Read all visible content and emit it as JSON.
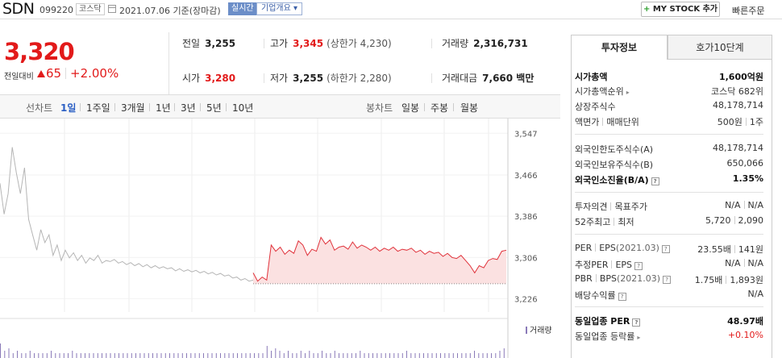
{
  "header": {
    "name": "SDN",
    "code": "099220",
    "market": "코스닥",
    "date": "2021.07.06 기준(장마감)",
    "live_label": "실시간",
    "corp_label": "기업개요",
    "mystock_plus": "+",
    "mystock_label": "MY STOCK 추가",
    "quick_label": "빠른주문"
  },
  "price": {
    "current": "3,320",
    "change_label": "전일대비",
    "change_icon": "up-triangle-icon",
    "change_value": "65",
    "change_pct": "+2.00%",
    "color_up": "#e21a1a"
  },
  "summary": {
    "prev_label": "전일",
    "prev": "3,255",
    "high_label": "고가",
    "high": "3,345",
    "upper_limit": "(상한가 4,230)",
    "volume_label": "거래량",
    "volume": "2,316,731",
    "open_label": "시가",
    "open": "3,280",
    "low_label": "저가",
    "low": "3,255",
    "lower_limit": "(하한가 2,280)",
    "amount_label": "거래대금",
    "amount": "7,660 백만"
  },
  "chart_tabs": {
    "line_label": "선차트",
    "periods": [
      "1일",
      "1주일",
      "3개월",
      "1년",
      "3년",
      "5년",
      "10년"
    ],
    "selected_period": "1일",
    "candle_label": "봉차트",
    "candles": [
      "일봉",
      "주봉",
      "월봉"
    ]
  },
  "chart_data": {
    "type": "line",
    "y_ticks": [
      "3,547",
      "3,466",
      "3,386",
      "3,306",
      "3,226"
    ],
    "ylim": [
      3200,
      3560
    ],
    "prev_close": 3255,
    "volume_label": "거래량",
    "series": [
      {
        "color": "#b5b5b5",
        "values": [
          3450,
          3390,
          3430,
          3520,
          3470,
          3430,
          3480,
          3380,
          3350,
          3320,
          3360,
          3335,
          3350,
          3310,
          3330,
          3300,
          3320,
          3305,
          3315,
          3300,
          3310,
          3295,
          3305,
          3300,
          3310,
          3295,
          3300,
          3298,
          3302,
          3295,
          3298,
          3292,
          3296,
          3290,
          3294,
          3288,
          3292,
          3286,
          3290,
          3285,
          3288,
          3284,
          3286,
          3280,
          3284,
          3279,
          3282,
          3278,
          3281,
          3276,
          3279,
          3274,
          3277,
          3272,
          3275,
          3270,
          3272,
          3266,
          3268,
          3262,
          3265,
          3260,
          3262
        ]
      },
      {
        "color": "#e0313a",
        "fill": "#fbe1e1",
        "values": [
          3276,
          3260,
          3268,
          3262,
          3330,
          3318,
          3326,
          3312,
          3320,
          3314,
          3338,
          3330,
          3310,
          3322,
          3318,
          3345,
          3332,
          3340,
          3320,
          3326,
          3328,
          3322,
          3336,
          3324,
          3330,
          3326,
          3320,
          3326,
          3318,
          3324,
          3320,
          3326,
          3318,
          3322,
          3320,
          3324,
          3316,
          3320,
          3312,
          3318,
          3314,
          3316,
          3308,
          3314,
          3306,
          3304,
          3310,
          3300,
          3290,
          3276,
          3290,
          3286,
          3300,
          3304,
          3302,
          3318,
          3320
        ]
      }
    ],
    "volume": [
      6,
      3,
      4,
      2,
      3,
      2,
      2,
      3,
      2,
      2,
      2,
      2,
      3,
      2,
      2,
      2,
      2,
      3,
      2,
      2,
      2,
      2,
      2,
      2,
      2,
      2,
      2,
      2,
      2,
      2,
      2,
      2,
      2,
      2,
      2,
      2,
      2,
      2,
      2,
      2,
      2,
      2,
      2,
      2,
      2,
      2,
      2,
      2,
      2,
      2,
      2,
      2,
      2,
      2,
      2,
      2,
      2,
      2,
      2,
      2,
      2,
      2,
      2,
      5,
      3,
      4,
      3,
      2,
      3,
      2,
      2,
      3,
      2,
      3,
      2,
      2,
      3,
      2,
      2,
      3,
      2,
      2,
      2,
      2,
      2,
      3,
      2,
      2,
      2,
      2,
      2,
      2,
      2,
      2,
      2,
      2,
      3,
      2,
      2,
      2,
      2,
      2,
      2,
      2,
      2,
      2,
      2,
      2,
      2,
      2,
      2,
      2,
      3,
      2,
      2,
      2,
      2,
      2,
      3,
      4
    ]
  },
  "right_panel": {
    "tab_info": "투자정보",
    "tab_hoga": "호가10단계",
    "market_cap_label": "시가총액",
    "market_cap": "1,600억원",
    "cap_rank_label": "시가총액순위",
    "cap_rank_market": "코스닥",
    "cap_rank": "682위",
    "shares_label": "상장주식수",
    "shares": "48,178,714",
    "face_label": "액면가",
    "unit_label": "매매단위",
    "face": "500원",
    "unit": "1주",
    "foreign_limit_label": "외국인한도주식수(A)",
    "foreign_limit": "48,178,714",
    "foreign_hold_label": "외국인보유주식수(B)",
    "foreign_hold": "650,066",
    "foreign_ratio_label": "외국인소진율(B/A)",
    "foreign_ratio": "1.35%",
    "opinion_label": "투자의견",
    "target_label": "목표주가",
    "opinion": "N/A",
    "target": "N/A",
    "wk_high_label": "52주최고",
    "wk_low_label": "최저",
    "wk_high": "5,720",
    "wk_low": "2,090",
    "per_label": "PER",
    "eps_label": "EPS",
    "eps_year": "(2021.03)",
    "per": "23.55배",
    "eps": "141원",
    "est_per_label": "추정PER",
    "est_eps_label": "EPS",
    "est_per": "N/A",
    "est_eps": "N/A",
    "pbr_label": "PBR",
    "bps_label": "BPS",
    "bps_year": "(2021.03)",
    "pbr": "1.75배",
    "bps": "1,893원",
    "div_label": "배당수익률",
    "div": "N/A",
    "sector_per_label": "동일업종 PER",
    "sector_per": "48.97배",
    "sector_chg_label": "동일업종 등락률",
    "sector_chg": "+0.10%"
  }
}
